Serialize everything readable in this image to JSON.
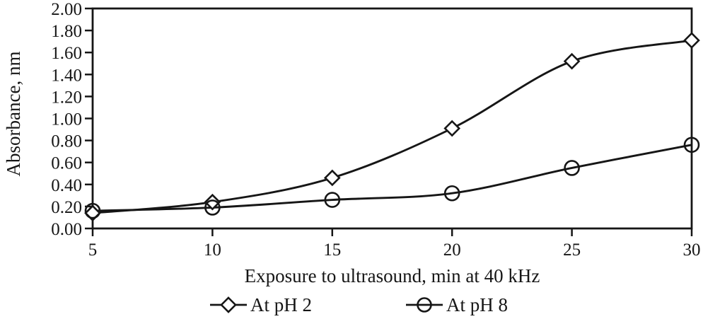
{
  "chart_data": {
    "type": "line",
    "title": "",
    "xlabel": "Exposure to ultrasound, min at 40 kHz",
    "ylabel": "Absorbance, nm",
    "x": [
      5,
      10,
      15,
      20,
      25,
      30
    ],
    "x_tick_labels": [
      "5",
      "10",
      "15",
      "20",
      "25",
      "30"
    ],
    "y_ticks": [
      0.0,
      0.2,
      0.4,
      0.6,
      0.8,
      1.0,
      1.2,
      1.4,
      1.6,
      1.8,
      2.0
    ],
    "y_tick_labels": [
      "0.00",
      "0.20",
      "0.40",
      "0.60",
      "0.80",
      "1.00",
      "1.20",
      "1.40",
      "1.60",
      "1.80",
      "2.00"
    ],
    "xlim": [
      5,
      30
    ],
    "ylim": [
      0,
      2
    ],
    "grid": false,
    "plot_border": true,
    "legend_position": "bottom",
    "line_color": "#161616",
    "marker_fill": "#ffffff",
    "series": [
      {
        "name": "At pH 2",
        "marker": "diamond",
        "values": [
          0.14,
          0.24,
          0.46,
          0.91,
          1.52,
          1.71
        ]
      },
      {
        "name": "At pH 8",
        "marker": "circle",
        "values": [
          0.16,
          0.19,
          0.26,
          0.32,
          0.55,
          0.76
        ]
      }
    ]
  }
}
